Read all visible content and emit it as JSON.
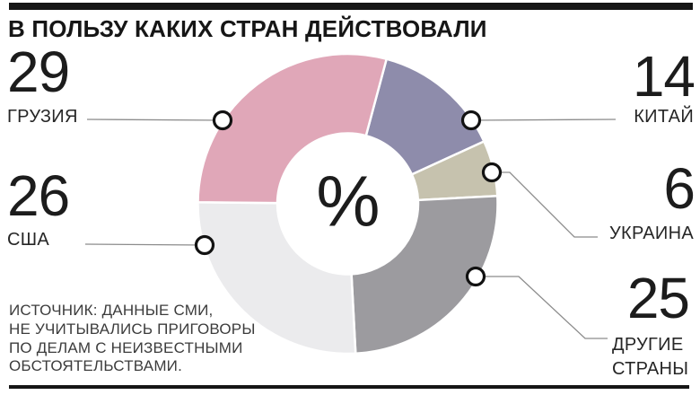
{
  "title": "В ПОЛЬЗУ КАКИХ СТРАН ДЕЙСТВОВАЛИ",
  "center_symbol": "%",
  "chart_data": {
    "type": "pie",
    "subtype": "donut",
    "title": "В ПОЛЬЗУ КАКИХ СТРАН ДЕЙСТВОВАЛИ",
    "unit": "%",
    "total": 100,
    "direction": "clockwise",
    "start_angle_deg": 15,
    "inner_radius_ratio": 0.47,
    "separator_color": "#ffffff",
    "segments": [
      {
        "id": "china",
        "label": "КИТАЙ",
        "value": 14,
        "color": "#8e8cab"
      },
      {
        "id": "ukraine",
        "label": "УКРАИНА",
        "value": 6,
        "color": "#c6c2ae"
      },
      {
        "id": "others",
        "label": "ДРУГИЕ СТРАНЫ",
        "value": 25,
        "color": "#9c9b9f"
      },
      {
        "id": "usa",
        "label": "США",
        "value": 26,
        "color": "#ebebed"
      },
      {
        "id": "georgia",
        "label": "ГРУЗИЯ",
        "value": 29,
        "color": "#e0a7b8"
      }
    ]
  },
  "callouts": {
    "georgia": {
      "value": "29",
      "label": "ГРУЗИЯ"
    },
    "usa": {
      "value": "26",
      "label": "США"
    },
    "china": {
      "value": "14",
      "label": "КИТАЙ"
    },
    "ukraine": {
      "value": "6",
      "label": "УКРАИНА"
    },
    "others": {
      "value": "25",
      "label_line1": "ДРУГИЕ",
      "label_line2": "СТРАНЫ"
    }
  },
  "source": {
    "lines": [
      "ИСТОЧНИК: ДАННЫЕ СМИ,",
      "НЕ УЧИТЫВАЛИСЬ ПРИГОВОРЫ",
      "ПО ДЕЛАМ С НЕИЗВЕСТНЫМИ",
      "ОБСТОЯТЕЛЬСТВАМИ."
    ]
  },
  "colors": {
    "rule": "#161616",
    "leader_line": "#8c8c8c",
    "dot_fill": "#ffffff",
    "dot_ring": "#121212",
    "text": "#1c1c1c"
  }
}
